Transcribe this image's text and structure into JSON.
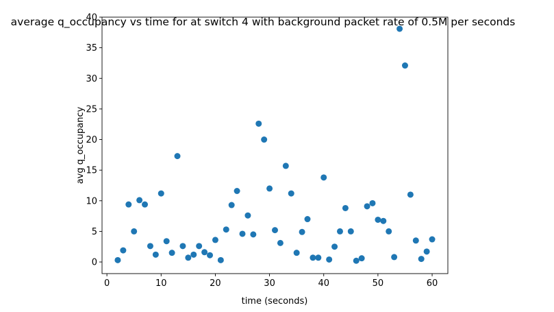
{
  "chart_data": {
    "type": "scatter",
    "title": "average q_occupancy vs time for at switch 4 with background packet rate of 0.5M per seconds",
    "xlabel": "time (seconds)",
    "ylabel": "avg q_occupancy",
    "xlim": [
      -0.9,
      62.9
    ],
    "ylim": [
      -1.9,
      40.0
    ],
    "xticks": [
      0,
      10,
      20,
      30,
      40,
      50,
      60
    ],
    "yticks": [
      0,
      5,
      10,
      15,
      20,
      25,
      30,
      35,
      40
    ],
    "grid": false,
    "marker_color": "#1f77b4",
    "x": [
      2,
      3,
      4,
      5,
      6,
      7,
      8,
      9,
      10,
      11,
      12,
      13,
      14,
      15,
      16,
      17,
      18,
      19,
      20,
      21,
      22,
      23,
      24,
      25,
      26,
      27,
      28,
      29,
      30,
      31,
      32,
      33,
      34,
      35,
      36,
      37,
      38,
      39,
      40,
      41,
      42,
      43,
      44,
      45,
      46,
      47,
      48,
      49,
      50,
      51,
      52,
      53,
      54,
      55,
      56,
      57,
      58,
      59,
      60
    ],
    "y": [
      0.3,
      1.9,
      9.4,
      5.0,
      10.1,
      9.4,
      2.6,
      1.2,
      11.2,
      3.4,
      1.5,
      17.3,
      2.6,
      0.7,
      1.2,
      2.6,
      1.6,
      1.1,
      3.6,
      0.3,
      5.3,
      9.3,
      11.6,
      4.6,
      7.6,
      4.5,
      22.6,
      20.0,
      12.0,
      5.2,
      3.1,
      15.7,
      11.2,
      1.5,
      4.9,
      7.0,
      0.7,
      0.7,
      13.8,
      0.4,
      2.5,
      5.0,
      8.8,
      5.0,
      0.2,
      0.6,
      9.1,
      9.6,
      6.9,
      6.7,
      5.0,
      0.8,
      38.1,
      32.1,
      11.0,
      3.5,
      0.5,
      1.7,
      3.7
    ]
  }
}
